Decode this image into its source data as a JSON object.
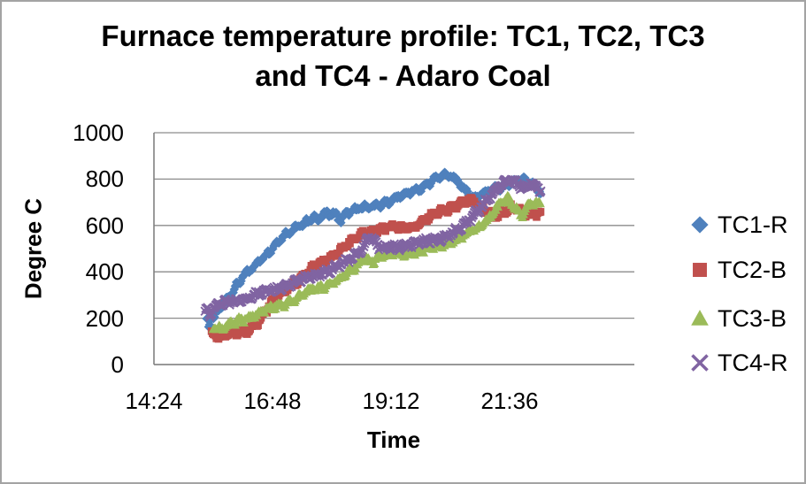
{
  "chart_data": {
    "type": "scatter",
    "title": "Furnace temperature profile: TC1, TC2, TC3 and TC4 - Adaro Coal",
    "title_lines": [
      "Furnace temperature profile: TC1, TC2, TC3",
      "and TC4 - Adaro Coal"
    ],
    "xlabel": "Time",
    "ylabel": "Degree C",
    "x_axis": {
      "tick_labels": [
        "14:24",
        "16:48",
        "19:12",
        "21:36"
      ],
      "tick_minutes": [
        0,
        144,
        288,
        432
      ],
      "origin_time": "14:24",
      "axis_max_minutes": 583,
      "minutes_per_major_unit": 144
    },
    "y_axis": {
      "ticks": [
        0,
        200,
        400,
        600,
        800,
        1000
      ],
      "min": 0,
      "max": 1000
    },
    "grid": "horizontal-major",
    "legend_position": "right",
    "point_time_unit": "minutes after 14:24",
    "note": "Dense thermocouple log traces; points below are keyframes [minutes, degC] read from the plotted bands",
    "series": [
      {
        "name": "TC1-R",
        "marker": "diamond",
        "color": "#4F81BD",
        "points": [
          [
            64,
            195
          ],
          [
            67,
            160
          ],
          [
            70,
            225
          ],
          [
            73,
            200
          ],
          [
            77,
            235
          ],
          [
            85,
            268
          ],
          [
            92,
            300
          ],
          [
            99,
            332
          ],
          [
            106,
            362
          ],
          [
            113,
            392
          ],
          [
            120,
            420
          ],
          [
            127,
            448
          ],
          [
            134,
            472
          ],
          [
            141,
            494
          ],
          [
            148,
            518
          ],
          [
            156,
            546
          ],
          [
            164,
            570
          ],
          [
            172,
            591
          ],
          [
            180,
            609
          ],
          [
            188,
            624
          ],
          [
            194,
            632
          ],
          [
            199,
            622
          ],
          [
            204,
            636
          ],
          [
            210,
            646
          ],
          [
            216,
            654
          ],
          [
            221,
            648
          ],
          [
            226,
            625
          ],
          [
            231,
            648
          ],
          [
            237,
            658
          ],
          [
            244,
            664
          ],
          [
            252,
            670
          ],
          [
            260,
            678
          ],
          [
            270,
            688
          ],
          [
            280,
            698
          ],
          [
            290,
            710
          ],
          [
            300,
            724
          ],
          [
            310,
            740
          ],
          [
            320,
            758
          ],
          [
            330,
            776
          ],
          [
            340,
            795
          ],
          [
            348,
            808
          ],
          [
            355,
            816
          ],
          [
            361,
            812
          ],
          [
            367,
            800
          ],
          [
            373,
            778
          ],
          [
            379,
            750
          ],
          [
            385,
            725
          ],
          [
            390,
            716
          ],
          [
            395,
            726
          ],
          [
            401,
            740
          ],
          [
            408,
            752
          ],
          [
            416,
            764
          ],
          [
            424,
            773
          ],
          [
            432,
            781
          ],
          [
            440,
            787
          ],
          [
            448,
            791
          ],
          [
            456,
            788
          ],
          [
            462,
            776
          ],
          [
            466,
            760
          ],
          [
            470,
            745
          ]
        ]
      },
      {
        "name": "TC2-B",
        "marker": "square",
        "color": "#C0504D",
        "points": [
          [
            70,
            138
          ],
          [
            76,
            131
          ],
          [
            84,
            128
          ],
          [
            92,
            130
          ],
          [
            100,
            133
          ],
          [
            108,
            139
          ],
          [
            116,
            153
          ],
          [
            123,
            176
          ],
          [
            130,
            206
          ],
          [
            137,
            238
          ],
          [
            144,
            268
          ],
          [
            152,
            295
          ],
          [
            160,
            322
          ],
          [
            168,
            347
          ],
          [
            176,
            368
          ],
          [
            184,
            389
          ],
          [
            192,
            409
          ],
          [
            200,
            429
          ],
          [
            208,
            449
          ],
          [
            216,
            469
          ],
          [
            224,
            489
          ],
          [
            232,
            509
          ],
          [
            240,
            529
          ],
          [
            247,
            547
          ],
          [
            253,
            561
          ],
          [
            259,
            571
          ],
          [
            267,
            579
          ],
          [
            275,
            585
          ],
          [
            283,
            589
          ],
          [
            291,
            592
          ],
          [
            299,
            589
          ],
          [
            307,
            592
          ],
          [
            314,
            598
          ],
          [
            322,
            610
          ],
          [
            330,
            624
          ],
          [
            338,
            639
          ],
          [
            346,
            654
          ],
          [
            354,
            667
          ],
          [
            362,
            679
          ],
          [
            370,
            691
          ],
          [
            377,
            700
          ],
          [
            382,
            704
          ],
          [
            388,
            697
          ],
          [
            394,
            684
          ],
          [
            400,
            671
          ],
          [
            406,
            661
          ],
          [
            412,
            654
          ],
          [
            418,
            649
          ],
          [
            424,
            653
          ],
          [
            429,
            661
          ],
          [
            434,
            672
          ],
          [
            438,
            676
          ],
          [
            443,
            666
          ],
          [
            449,
            655
          ],
          [
            455,
            651
          ],
          [
            461,
            654
          ],
          [
            466,
            657
          ],
          [
            470,
            655
          ]
        ]
      },
      {
        "name": "TC3-B",
        "marker": "triangle",
        "color": "#9BBB59",
        "points": [
          [
            72,
            162
          ],
          [
            80,
            155
          ],
          [
            88,
            163
          ],
          [
            96,
            176
          ],
          [
            104,
            190
          ],
          [
            112,
            203
          ],
          [
            120,
            214
          ],
          [
            128,
            224
          ],
          [
            136,
            234
          ],
          [
            145,
            245
          ],
          [
            154,
            258
          ],
          [
            163,
            272
          ],
          [
            172,
            287
          ],
          [
            181,
            303
          ],
          [
            190,
            318
          ],
          [
            199,
            330
          ],
          [
            208,
            344
          ],
          [
            217,
            358
          ],
          [
            226,
            373
          ],
          [
            234,
            390
          ],
          [
            242,
            410
          ],
          [
            248,
            434
          ],
          [
            252,
            452
          ],
          [
            256,
            466
          ],
          [
            260,
            456
          ],
          [
            264,
            447
          ],
          [
            269,
            455
          ],
          [
            275,
            463
          ],
          [
            282,
            470
          ],
          [
            290,
            477
          ],
          [
            298,
            481
          ],
          [
            306,
            482
          ],
          [
            314,
            484
          ],
          [
            322,
            488
          ],
          [
            330,
            495
          ],
          [
            338,
            503
          ],
          [
            346,
            512
          ],
          [
            354,
            522
          ],
          [
            362,
            533
          ],
          [
            370,
            546
          ],
          [
            378,
            559
          ],
          [
            386,
            574
          ],
          [
            394,
            593
          ],
          [
            402,
            620
          ],
          [
            410,
            652
          ],
          [
            418,
            681
          ],
          [
            425,
            702
          ],
          [
            430,
            712
          ],
          [
            436,
            690
          ],
          [
            442,
            660
          ],
          [
            446,
            647
          ],
          [
            451,
            672
          ],
          [
            456,
            694
          ],
          [
            461,
            700
          ],
          [
            466,
            693
          ],
          [
            470,
            685
          ]
        ]
      },
      {
        "name": "TC4-R",
        "marker": "x",
        "color": "#8064A2",
        "points": [
          [
            62,
            228
          ],
          [
            65,
            248
          ],
          [
            68,
            215
          ],
          [
            72,
            242
          ],
          [
            76,
            252
          ],
          [
            82,
            258
          ],
          [
            90,
            266
          ],
          [
            98,
            274
          ],
          [
            106,
            282
          ],
          [
            114,
            290
          ],
          [
            122,
            298
          ],
          [
            130,
            306
          ],
          [
            138,
            314
          ],
          [
            146,
            322
          ],
          [
            154,
            332
          ],
          [
            162,
            342
          ],
          [
            170,
            352
          ],
          [
            178,
            362
          ],
          [
            186,
            372
          ],
          [
            194,
            382
          ],
          [
            202,
            392
          ],
          [
            210,
            403
          ],
          [
            218,
            415
          ],
          [
            226,
            428
          ],
          [
            233,
            442
          ],
          [
            239,
            456
          ],
          [
            244,
            470
          ],
          [
            248,
            482
          ],
          [
            252,
            500
          ],
          [
            256,
            522
          ],
          [
            260,
            545
          ],
          [
            263,
            558
          ],
          [
            266,
            540
          ],
          [
            270,
            515
          ],
          [
            274,
            500
          ],
          [
            279,
            498
          ],
          [
            286,
            503
          ],
          [
            294,
            509
          ],
          [
            302,
            513
          ],
          [
            310,
            516
          ],
          [
            318,
            519
          ],
          [
            326,
            524
          ],
          [
            334,
            531
          ],
          [
            342,
            539
          ],
          [
            350,
            548
          ],
          [
            358,
            559
          ],
          [
            366,
            572
          ],
          [
            374,
            590
          ],
          [
            381,
            614
          ],
          [
            388,
            644
          ],
          [
            395,
            674
          ],
          [
            402,
            702
          ],
          [
            409,
            728
          ],
          [
            416,
            752
          ],
          [
            423,
            772
          ],
          [
            429,
            786
          ],
          [
            435,
            797
          ],
          [
            440,
            790
          ],
          [
            444,
            775
          ],
          [
            448,
            762
          ],
          [
            452,
            775
          ],
          [
            456,
            786
          ],
          [
            460,
            770
          ],
          [
            463,
            752
          ],
          [
            466,
            764
          ],
          [
            470,
            743
          ]
        ]
      }
    ]
  },
  "colors": {
    "background": "#FFFFFF",
    "border": "#A3A3A3",
    "gridline": "#8C8C8C",
    "axis_line": "#808080",
    "text": "#000000"
  }
}
